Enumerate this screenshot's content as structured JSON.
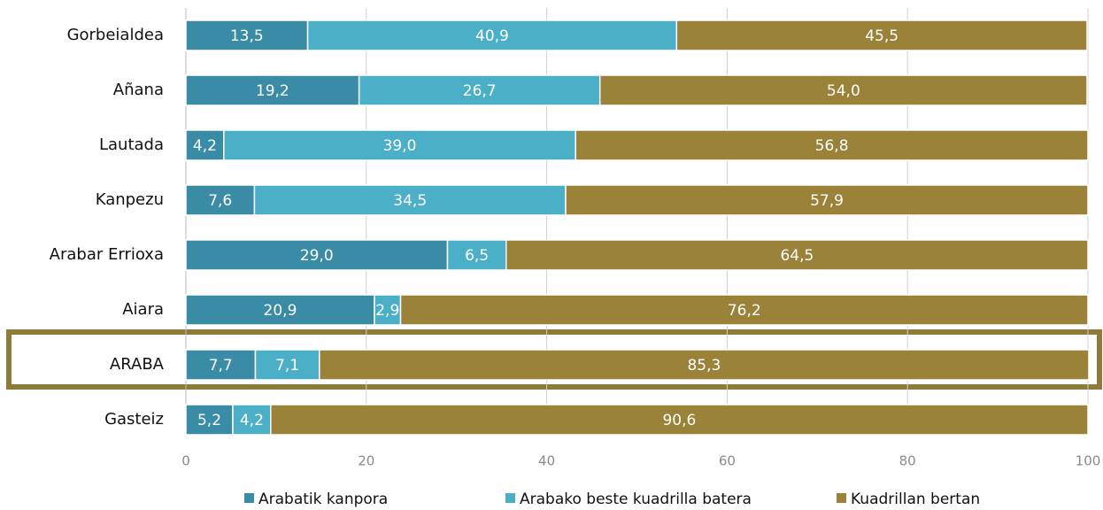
{
  "chart_data": {
    "type": "stacked-barh",
    "categories": [
      "Gorbeialdea",
      "Añana",
      "Lautada",
      "Kanpezu",
      "Arabar Errioxa",
      "Aiara",
      "ARABA",
      "Gasteiz"
    ],
    "series": [
      {
        "name": "Arabatik kanpora",
        "color": "#3a8ba5",
        "values": [
          13.5,
          19.2,
          4.2,
          7.6,
          29.0,
          20.9,
          7.7,
          5.2
        ],
        "value_labels": [
          "13,5",
          "19,2",
          "4,2",
          "7,6",
          "29,0",
          "20,9",
          "7,7",
          "5,2"
        ]
      },
      {
        "name": "Arabako beste kuadrilla batera",
        "color": "#4cafc8",
        "values": [
          40.9,
          26.7,
          39.0,
          34.5,
          6.5,
          2.9,
          7.1,
          4.2
        ],
        "value_labels": [
          "40,9",
          "26,7",
          "39,0",
          "34,5",
          "6,5",
          "2,9",
          "7,1",
          "4,2"
        ]
      },
      {
        "name": "Kuadrillan bertan",
        "color": "#9a8239",
        "values": [
          45.5,
          54.0,
          56.8,
          57.9,
          64.5,
          76.2,
          85.3,
          90.6
        ],
        "value_labels": [
          "45,5",
          "54,0",
          "56,8",
          "57,9",
          "64,5",
          "76,2",
          "85,3",
          "90,6"
        ]
      }
    ],
    "xlim": [
      0,
      100
    ],
    "xticks": [
      0,
      20,
      40,
      60,
      80,
      100
    ],
    "grid": true,
    "legend": "bottom"
  }
}
